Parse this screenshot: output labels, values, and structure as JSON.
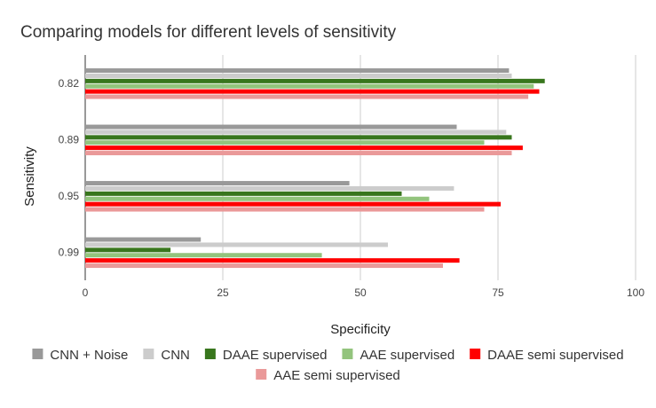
{
  "chart_data": {
    "type": "bar",
    "orientation": "horizontal",
    "title": "Comparing models for different levels of sensitivity",
    "xlabel": "Specificity",
    "ylabel": "Sensitivity",
    "categories": [
      "0.82",
      "0.89",
      "0.95",
      "0.99"
    ],
    "xlim": [
      0,
      100
    ],
    "xticks": [
      "0",
      "25",
      "50",
      "75",
      "100"
    ],
    "grid": true,
    "legend_position": "bottom",
    "series": [
      {
        "name": "CNN + Noise",
        "color": "#999999",
        "values": [
          77,
          67.5,
          48,
          21
        ]
      },
      {
        "name": "CNN",
        "color": "#cccccc",
        "values": [
          77.5,
          76.5,
          67,
          55
        ]
      },
      {
        "name": "DAAE supervised",
        "color": "#38761d",
        "values": [
          83.5,
          77.5,
          57.5,
          15.5
        ]
      },
      {
        "name": "AAE supervised",
        "color": "#93c47d",
        "values": [
          81.5,
          72.5,
          62.5,
          43
        ]
      },
      {
        "name": "DAAE semi supervised",
        "color": "#ff0000",
        "values": [
          82.5,
          79.5,
          75.5,
          68
        ]
      },
      {
        "name": "AAE semi supervised",
        "color": "#ea9999",
        "values": [
          80.5,
          77.5,
          72.5,
          65
        ]
      }
    ]
  }
}
